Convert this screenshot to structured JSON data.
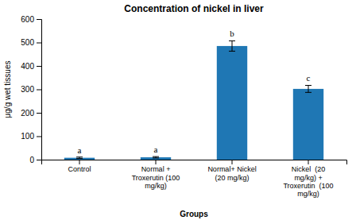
{
  "chart_data": {
    "type": "bar",
    "title": "Concentration of nickel in liver",
    "xlabel": "Groups",
    "ylabel": "μg/g wet tissues",
    "categories": [
      "Control",
      "Normal +\nTroxerutin (100\nmg/kg)",
      "Normal+ Nickel\n(20 mg/kg)",
      "Nickel  (20\nmg/kg) +\nTroxerutin  (100\nmg/kg)"
    ],
    "values": [
      8,
      10,
      485,
      302
    ],
    "errors": [
      3,
      3,
      22,
      15
    ],
    "annotations": [
      "a",
      "a",
      "b",
      "c"
    ],
    "ylim": [
      0,
      600
    ],
    "yticks": [
      0,
      100,
      200,
      300,
      400,
      500,
      600
    ],
    "grid": false
  }
}
